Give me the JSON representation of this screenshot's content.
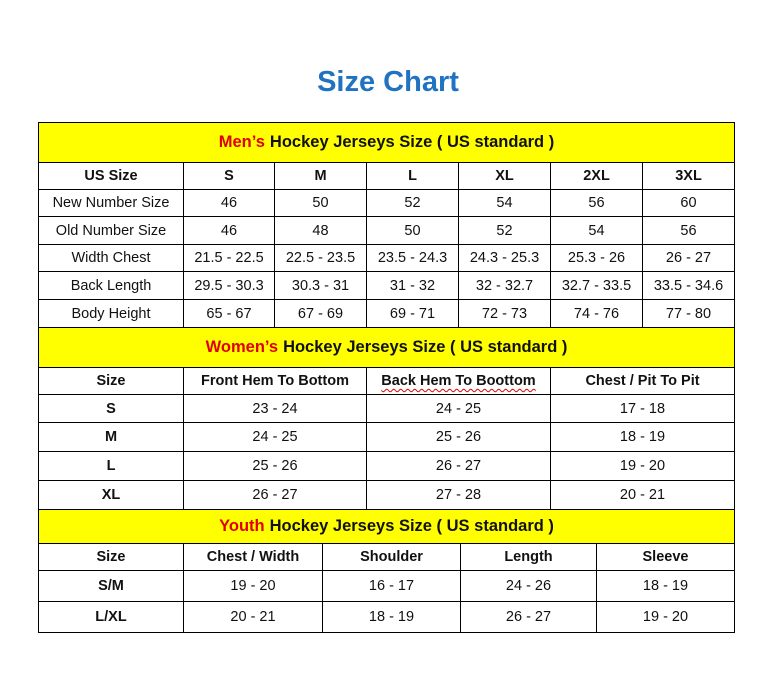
{
  "title": "Size Chart",
  "colors": {
    "title": "#1f73c0",
    "band": "#ffff00",
    "accent": "#e00000"
  },
  "mens": {
    "heading_accent": "Men’s",
    "heading_rest": "Hockey Jerseys Size ( US standard )",
    "columns": [
      "US Size",
      "S",
      "M",
      "L",
      "XL",
      "2XL",
      "3XL"
    ],
    "rows": [
      [
        "New Number Size",
        "46",
        "50",
        "52",
        "54",
        "56",
        "60"
      ],
      [
        "Old Number Size",
        "46",
        "48",
        "50",
        "52",
        "54",
        "56"
      ],
      [
        "Width Chest",
        "21.5 - 22.5",
        "22.5 - 23.5",
        "23.5 - 24.3",
        "24.3 - 25.3",
        "25.3 - 26",
        "26 - 27"
      ],
      [
        "Back Length",
        "29.5 - 30.3",
        "30.3 - 31",
        "31 - 32",
        "32 - 32.7",
        "32.7 - 33.5",
        "33.5 - 34.6"
      ],
      [
        "Body Height",
        "65 - 67",
        "67 - 69",
        "69 - 71",
        "72 - 73",
        "74 - 76",
        "77 - 80"
      ]
    ]
  },
  "womens": {
    "heading_accent": "Women’s",
    "heading_rest": "Hockey Jerseys Size ( US standard )",
    "columns": [
      "Size",
      "Front Hem To Bottom",
      "Back Hem To Boottom",
      "Chest / Pit To Pit"
    ],
    "rows": [
      [
        "S",
        "23 - 24",
        "24 - 25",
        "17 - 18"
      ],
      [
        "M",
        "24 - 25",
        "25 - 26",
        "18 - 19"
      ],
      [
        "L",
        "25 - 26",
        "26 - 27",
        "19 - 20"
      ],
      [
        "XL",
        "26 - 27",
        "27 - 28",
        "20 - 21"
      ]
    ]
  },
  "youth": {
    "heading_accent": "Youth",
    "heading_rest": "Hockey Jerseys Size ( US standard )",
    "columns": [
      "Size",
      "Chest / Width",
      "Shoulder",
      "Length",
      "Sleeve"
    ],
    "rows": [
      [
        "S/M",
        "19 - 20",
        "16 - 17",
        "24 - 26",
        "18 - 19"
      ],
      [
        "L/XL",
        "20 - 21",
        "18 - 19",
        "26 - 27",
        "19 - 20"
      ]
    ]
  }
}
